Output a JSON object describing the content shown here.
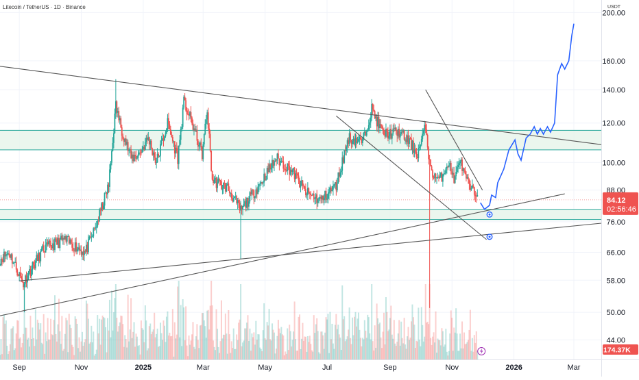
{
  "header": {
    "title": "Litecoin / TetherUS · 1D · Binance",
    "currency": "USDT"
  },
  "colors": {
    "up": "#26a69a",
    "down": "#ef5350",
    "zone_fill": "#e6f4ea",
    "zone_line": "#26a69a",
    "trendline": "#555555",
    "projection": "#2962ff",
    "price_badge": "#ef5350",
    "grid": "#f0f3fa"
  },
  "chart_data": {
    "type": "candlestick",
    "y_scale": "log",
    "ylim": [
      40.2,
      212.0
    ],
    "x_range": [
      "2024-08-13",
      "2026-03-28"
    ],
    "price_ticks": [
      "200.00",
      "160.00",
      "140.00",
      "120.00",
      "100.00",
      "88.00",
      "76.00",
      "66.00",
      "58.00",
      "50.00",
      "44.00"
    ],
    "time_ticks": [
      {
        "label": "Sep",
        "date": "2024-09-01",
        "bold": false
      },
      {
        "label": "Nov",
        "date": "2024-11-01",
        "bold": false
      },
      {
        "label": "2025",
        "date": "2025-01-01",
        "bold": true
      },
      {
        "label": "Mar",
        "date": "2025-03-01",
        "bold": false
      },
      {
        "label": "May",
        "date": "2025-05-01",
        "bold": false
      },
      {
        "label": "Jul",
        "date": "2025-07-01",
        "bold": false
      },
      {
        "label": "Sep",
        "date": "2025-09-01",
        "bold": false
      },
      {
        "label": "Nov",
        "date": "2025-11-01",
        "bold": false
      },
      {
        "label": "2026",
        "date": "2026-01-01",
        "bold": true
      },
      {
        "label": "Mar",
        "date": "2026-03-01",
        "bold": false
      }
    ],
    "price_anchors": [
      [
        "2024-08-13",
        64
      ],
      [
        "2024-08-22",
        66
      ],
      [
        "2024-09-05",
        57
      ],
      [
        "2024-09-08",
        59
      ],
      [
        "2024-09-25",
        67
      ],
      [
        "2024-10-15",
        70
      ],
      [
        "2024-11-05",
        66
      ],
      [
        "2024-11-15",
        74
      ],
      [
        "2024-11-28",
        90
      ],
      [
        "2024-12-05",
        130
      ],
      [
        "2024-12-10",
        118
      ],
      [
        "2024-12-20",
        102
      ],
      [
        "2024-12-28",
        104
      ],
      [
        "2025-01-06",
        112
      ],
      [
        "2025-01-14",
        100
      ],
      [
        "2025-01-25",
        120
      ],
      [
        "2025-02-04",
        102
      ],
      [
        "2025-02-10",
        132
      ],
      [
        "2025-02-18",
        120
      ],
      [
        "2025-02-28",
        104
      ],
      [
        "2025-03-05",
        127
      ],
      [
        "2025-03-10",
        92
      ],
      [
        "2025-03-25",
        89
      ],
      [
        "2025-04-07",
        80
      ],
      [
        "2025-04-25",
        90
      ],
      [
        "2025-05-12",
        102
      ],
      [
        "2025-05-28",
        96
      ],
      [
        "2025-06-10",
        87
      ],
      [
        "2025-06-25",
        84
      ],
      [
        "2025-07-10",
        90
      ],
      [
        "2025-07-22",
        112
      ],
      [
        "2025-08-05",
        110
      ],
      [
        "2025-08-14",
        128
      ],
      [
        "2025-08-25",
        114
      ],
      [
        "2025-09-10",
        115
      ],
      [
        "2025-09-20",
        110
      ],
      [
        "2025-09-28",
        104
      ],
      [
        "2025-10-06",
        118
      ],
      [
        "2025-10-11",
        96
      ],
      [
        "2025-10-20",
        92
      ],
      [
        "2025-10-28",
        100
      ],
      [
        "2025-11-04",
        92
      ],
      [
        "2025-11-08",
        102
      ],
      [
        "2025-11-15",
        92
      ],
      [
        "2025-11-20",
        88
      ],
      [
        "2025-11-26",
        86
      ]
    ],
    "wick_extremes": [
      {
        "date": "2024-09-06",
        "value": 50
      },
      {
        "date": "2024-12-05",
        "value": 147
      },
      {
        "date": "2025-04-07",
        "value": 64
      },
      {
        "date": "2025-08-14",
        "value": 134
      },
      {
        "date": "2025-10-06",
        "value": 121
      },
      {
        "date": "2025-10-10",
        "value": 51
      }
    ],
    "volume_max_label": "174.37K",
    "zones": [
      {
        "upper": 116.0,
        "lower": 106.0
      },
      {
        "upper": 80.5,
        "lower": 76.8
      }
    ],
    "trendlines": [
      {
        "from": [
          "2024-08-13",
          156.0
        ],
        "to": [
          "2026-03-28",
          108.6
        ]
      },
      {
        "from": [
          "2024-08-13",
          49.2
        ],
        "to": [
          "2026-02-20",
          86.5
        ]
      },
      {
        "from": [
          "2024-09-01",
          57.8
        ],
        "to": [
          "2026-03-28",
          75.5
        ]
      },
      {
        "from": [
          "2025-07-10",
          124.0
        ],
        "to": [
          "2025-12-05",
          70.0
        ]
      },
      {
        "from": [
          "2025-10-06",
          140.0
        ],
        "to": [
          "2025-12-01",
          88.0
        ]
      }
    ],
    "projection": [
      [
        "2025-11-29",
        83
      ],
      [
        "2025-12-03",
        80.5
      ],
      [
        "2025-12-08",
        82
      ],
      [
        "2025-12-10",
        86
      ],
      [
        "2025-12-14",
        85
      ],
      [
        "2025-12-16",
        91
      ],
      [
        "2025-12-22",
        97
      ],
      [
        "2025-12-27",
        106
      ],
      [
        "2026-01-02",
        111
      ],
      [
        "2026-01-05",
        104
      ],
      [
        "2026-01-08",
        101
      ],
      [
        "2026-01-13",
        112
      ],
      [
        "2026-01-17",
        114
      ],
      [
        "2026-01-21",
        118
      ],
      [
        "2026-01-24",
        114
      ],
      [
        "2026-01-27",
        117
      ],
      [
        "2026-01-30",
        114
      ],
      [
        "2026-02-03",
        118
      ],
      [
        "2026-02-06",
        115
      ],
      [
        "2026-02-10",
        120
      ],
      [
        "2026-02-13",
        150
      ],
      [
        "2026-02-17",
        158
      ],
      [
        "2026-02-20",
        154
      ],
      [
        "2026-02-24",
        160
      ],
      [
        "2026-02-27",
        180
      ],
      [
        "2026-03-01",
        190
      ]
    ],
    "event_markers": [
      {
        "date": "2025-12-08",
        "value": 78.6
      },
      {
        "date": "2025-12-08",
        "value": 70.9
      }
    ],
    "last_price": {
      "value": 84.12,
      "label": "84.12",
      "countdown": "02:56:46"
    }
  }
}
